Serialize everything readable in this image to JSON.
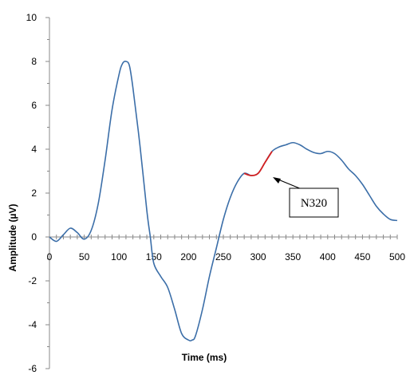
{
  "chart_data": {
    "type": "line",
    "title": "",
    "xlabel": "Time (ms)",
    "ylabel": "Amplitude (µV)",
    "xlim": [
      0,
      500
    ],
    "ylim": [
      -6,
      10
    ],
    "x_ticks": [
      "0",
      "50",
      "100",
      "150",
      "200",
      "250",
      "300",
      "350",
      "400",
      "450",
      "500"
    ],
    "y_ticks": [
      "-6",
      "-4",
      "-2",
      "0",
      "2",
      "4",
      "6",
      "8",
      "10"
    ],
    "grid": false,
    "series": [
      {
        "color": "#3b6ea8",
        "x": [
          0,
          10,
          20,
          30,
          40,
          50,
          60,
          70,
          80,
          90,
          100,
          105,
          110,
          115,
          120,
          130,
          140,
          145,
          150,
          160,
          170,
          180,
          190,
          200,
          205,
          210,
          220,
          230,
          240,
          250,
          260,
          270,
          280,
          290,
          300,
          310,
          320,
          330,
          340,
          350,
          360,
          370,
          380,
          390,
          400,
          410,
          420,
          430,
          440,
          450,
          460,
          470,
          480,
          490,
          500
        ],
        "y": [
          0.0,
          -0.2,
          0.1,
          0.4,
          0.2,
          -0.1,
          0.3,
          1.5,
          3.5,
          5.8,
          7.4,
          7.9,
          8.0,
          7.8,
          6.8,
          4.2,
          1.2,
          0.0,
          -1.2,
          -1.8,
          -2.3,
          -3.3,
          -4.4,
          -4.7,
          -4.7,
          -4.5,
          -3.3,
          -1.8,
          -0.5,
          0.8,
          1.8,
          2.5,
          2.9,
          2.8,
          2.9,
          3.4,
          3.9,
          4.1,
          4.2,
          4.3,
          4.2,
          4.0,
          3.85,
          3.8,
          3.9,
          3.8,
          3.5,
          3.1,
          2.8,
          2.4,
          1.9,
          1.4,
          1.05,
          0.8,
          0.75
        ]
      }
    ],
    "highlight": {
      "color": "#d42020",
      "x_start": 280,
      "x_end": 325
    },
    "annotation": {
      "text": "N320",
      "target_x": 322,
      "target_y": 2.6
    }
  }
}
